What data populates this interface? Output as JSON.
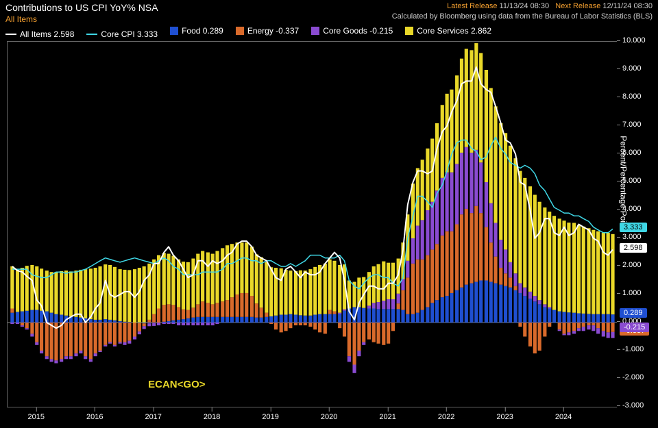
{
  "header": {
    "title": "Contributions to US CPI YoY% NSA",
    "subtitle": "All Items",
    "latest_label": "Latest Release",
    "latest_value": "11/13/24 08:30",
    "next_label": "Next Release",
    "next_value": "12/11/24 08:30",
    "source": "Calculated by Bloomberg using data from the Bureau of Labor Statistics (BLS)"
  },
  "legend": {
    "items": [
      {
        "key": "all",
        "label": "All Items 2.598",
        "type": "line",
        "color": "#ffffff"
      },
      {
        "key": "core",
        "label": "Core CPI 3.333",
        "type": "line",
        "color": "#3fd7e6"
      },
      {
        "key": "food",
        "label": "Food 0.289",
        "type": "bar",
        "color": "#1f4fd1"
      },
      {
        "key": "energy",
        "label": "Energy -0.337",
        "type": "bar",
        "color": "#d96a2b"
      },
      {
        "key": "goods",
        "label": "Core Goods -0.215",
        "type": "bar",
        "color": "#8a4bd1"
      },
      {
        "key": "svcs",
        "label": "Core Services 2.862",
        "type": "bar",
        "color": "#e9d829"
      }
    ]
  },
  "chart": {
    "type": "stacked-bar-with-lines",
    "background_color": "#000000",
    "grid_color": "#444444",
    "axis_color": "#888888",
    "text_color": "#ffffff",
    "y": {
      "min": -3.0,
      "max": 10.0,
      "step": 1.0,
      "label": "Percent/Percentage Point",
      "decimals": 3
    },
    "x": {
      "start_year": 2014.5,
      "end_year": 2024.9,
      "tick_years": [
        2015,
        2016,
        2017,
        2018,
        2019,
        2020,
        2021,
        2022,
        2023,
        2024
      ]
    },
    "colors": {
      "food": "#1f4fd1",
      "energy": "#d96a2b",
      "goods": "#8a4bd1",
      "svcs": "#e9d829",
      "all": "#ffffff",
      "core": "#3fd7e6"
    },
    "line_width": {
      "all": 2,
      "core": 1.5
    },
    "end_labels": [
      {
        "text": "3.333",
        "color": "#3fd7e6",
        "bg": "#3fd7e6",
        "fg": "#000",
        "y": 3.333
      },
      {
        "text": "2.598",
        "color": "#ffffff",
        "bg": "#ffffff",
        "fg": "#000",
        "y": 2.598
      },
      {
        "text": "0.289",
        "color": "#1f4fd1",
        "bg": "#1f4fd1",
        "fg": "#fff",
        "y": 0.289
      },
      {
        "text": "-0.337",
        "color": "#d96a2b",
        "bg": "#d96a2b",
        "fg": "#fff",
        "y": -0.337
      },
      {
        "text": "-0.215",
        "color": "#8a4bd1",
        "bg": "#8a4bd1",
        "fg": "#fff",
        "y": -0.215
      }
    ],
    "annotation": {
      "text": "ECAN<GO>",
      "x_year": 2016.9,
      "y_value": -2.0
    },
    "series": {
      "t": [
        2014.58,
        2014.67,
        2014.75,
        2014.83,
        2014.92,
        2015.0,
        2015.08,
        2015.17,
        2015.25,
        2015.33,
        2015.42,
        2015.5,
        2015.58,
        2015.67,
        2015.75,
        2015.83,
        2015.92,
        2016.0,
        2016.08,
        2016.17,
        2016.25,
        2016.33,
        2016.42,
        2016.5,
        2016.58,
        2016.67,
        2016.75,
        2016.83,
        2016.92,
        2017.0,
        2017.08,
        2017.17,
        2017.25,
        2017.33,
        2017.42,
        2017.5,
        2017.58,
        2017.67,
        2017.75,
        2017.83,
        2017.92,
        2018.0,
        2018.08,
        2018.17,
        2018.25,
        2018.33,
        2018.42,
        2018.5,
        2018.58,
        2018.67,
        2018.75,
        2018.83,
        2018.92,
        2019.0,
        2019.08,
        2019.17,
        2019.25,
        2019.33,
        2019.42,
        2019.5,
        2019.58,
        2019.67,
        2019.75,
        2019.83,
        2019.92,
        2020.0,
        2020.08,
        2020.17,
        2020.25,
        2020.33,
        2020.42,
        2020.5,
        2020.58,
        2020.67,
        2020.75,
        2020.83,
        2020.92,
        2021.0,
        2021.08,
        2021.17,
        2021.25,
        2021.33,
        2021.42,
        2021.5,
        2021.58,
        2021.67,
        2021.75,
        2021.83,
        2021.92,
        2022.0,
        2022.08,
        2022.17,
        2022.25,
        2022.33,
        2022.42,
        2022.5,
        2022.58,
        2022.67,
        2022.75,
        2022.83,
        2022.92,
        2023.0,
        2023.08,
        2023.17,
        2023.25,
        2023.33,
        2023.42,
        2023.5,
        2023.58,
        2023.67,
        2023.75,
        2023.83,
        2023.92,
        2024.0,
        2024.08,
        2024.17,
        2024.25,
        2024.33,
        2024.42,
        2024.5,
        2024.58,
        2024.67,
        2024.75,
        2024.83
      ],
      "food": [
        0.35,
        0.38,
        0.4,
        0.42,
        0.45,
        0.45,
        0.42,
        0.4,
        0.35,
        0.3,
        0.28,
        0.25,
        0.22,
        0.2,
        0.18,
        0.15,
        0.12,
        0.1,
        0.1,
        0.12,
        0.1,
        0.08,
        0.05,
        0.03,
        0.02,
        0.0,
        -0.02,
        -0.03,
        -0.03,
        -0.02,
        0.0,
        0.03,
        0.05,
        0.08,
        0.1,
        0.12,
        0.15,
        0.18,
        0.2,
        0.2,
        0.2,
        0.2,
        0.2,
        0.2,
        0.2,
        0.2,
        0.2,
        0.2,
        0.2,
        0.2,
        0.18,
        0.18,
        0.2,
        0.22,
        0.25,
        0.28,
        0.28,
        0.3,
        0.28,
        0.26,
        0.25,
        0.25,
        0.28,
        0.3,
        0.3,
        0.3,
        0.3,
        0.3,
        0.42,
        0.5,
        0.55,
        0.55,
        0.52,
        0.5,
        0.5,
        0.48,
        0.48,
        0.48,
        0.48,
        0.48,
        0.45,
        0.3,
        0.3,
        0.35,
        0.45,
        0.55,
        0.7,
        0.8,
        0.9,
        0.95,
        1.05,
        1.15,
        1.25,
        1.35,
        1.4,
        1.45,
        1.5,
        1.5,
        1.45,
        1.4,
        1.35,
        1.3,
        1.25,
        1.15,
        1.05,
        0.95,
        0.85,
        0.75,
        0.65,
        0.55,
        0.5,
        0.45,
        0.4,
        0.38,
        0.36,
        0.35,
        0.33,
        0.32,
        0.31,
        0.3,
        0.3,
        0.3,
        0.3,
        0.289
      ],
      "energy": [
        0.15,
        0.0,
        -0.1,
        -0.2,
        -0.4,
        -0.7,
        -1.0,
        -1.2,
        -1.3,
        -1.35,
        -1.3,
        -1.2,
        -1.2,
        -1.1,
        -1.0,
        -1.2,
        -1.3,
        -1.1,
        -1.0,
        -0.8,
        -0.7,
        -0.8,
        -0.7,
        -0.7,
        -0.65,
        -0.5,
        -0.3,
        -0.1,
        0.1,
        0.3,
        0.5,
        0.6,
        0.6,
        0.55,
        0.45,
        0.35,
        0.3,
        0.35,
        0.45,
        0.55,
        0.5,
        0.45,
        0.5,
        0.55,
        0.6,
        0.7,
        0.8,
        0.85,
        0.85,
        0.75,
        0.5,
        0.35,
        0.15,
        -0.05,
        -0.25,
        -0.35,
        -0.3,
        -0.2,
        -0.1,
        -0.1,
        -0.1,
        -0.15,
        -0.25,
        -0.35,
        -0.4,
        0.15,
        0.1,
        -0.2,
        -0.5,
        -1.2,
        -1.5,
        -1.0,
        -0.7,
        -0.6,
        -0.7,
        -0.75,
        -0.8,
        -0.75,
        -0.3,
        0.2,
        0.7,
        1.3,
        1.8,
        1.9,
        1.8,
        1.85,
        1.9,
        2.0,
        2.2,
        2.3,
        2.2,
        2.35,
        2.6,
        2.7,
        2.5,
        2.7,
        2.4,
        1.9,
        1.4,
        0.95,
        0.6,
        0.45,
        0.35,
        0.15,
        -0.15,
        -0.5,
        -0.85,
        -1.1,
        -1.0,
        -0.5,
        -0.15,
        0.0,
        -0.25,
        -0.4,
        -0.35,
        -0.3,
        -0.2,
        -0.15,
        -0.1,
        -0.1,
        -0.2,
        -0.3,
        -0.35,
        -0.337
      ],
      "goods": [
        -0.05,
        -0.05,
        -0.05,
        -0.05,
        -0.1,
        -0.1,
        -0.1,
        -0.1,
        -0.1,
        -0.1,
        -0.1,
        -0.1,
        -0.1,
        -0.1,
        -0.1,
        -0.1,
        -0.1,
        -0.1,
        -0.05,
        -0.05,
        -0.05,
        -0.05,
        -0.05,
        -0.1,
        -0.1,
        -0.1,
        -0.1,
        -0.1,
        -0.1,
        -0.1,
        -0.1,
        -0.05,
        -0.05,
        -0.05,
        -0.1,
        -0.1,
        -0.1,
        -0.1,
        -0.1,
        -0.1,
        -0.1,
        -0.1,
        -0.05,
        0.0,
        0.0,
        0.0,
        0.0,
        0.0,
        0.0,
        0.0,
        0.0,
        0.0,
        0.0,
        0.0,
        0.0,
        0.0,
        0.0,
        0.0,
        0.0,
        0.0,
        0.0,
        0.0,
        0.0,
        0.0,
        0.0,
        0.0,
        0.0,
        0.05,
        0.05,
        -0.2,
        -0.3,
        -0.2,
        -0.1,
        0.1,
        0.2,
        0.25,
        0.3,
        0.35,
        0.35,
        0.35,
        0.4,
        0.6,
        0.9,
        1.2,
        1.4,
        1.6,
        1.7,
        1.9,
        2.05,
        2.1,
        2.1,
        2.15,
        2.2,
        2.2,
        2.15,
        2.0,
        1.8,
        1.6,
        1.4,
        1.2,
        1.0,
        0.85,
        0.55,
        0.45,
        0.35,
        0.3,
        0.25,
        0.2,
        0.15,
        0.1,
        0.05,
        0.0,
        -0.05,
        -0.05,
        -0.1,
        -0.1,
        -0.1,
        -0.15,
        -0.15,
        -0.2,
        -0.2,
        -0.2,
        -0.2,
        -0.215
      ],
      "svcs": [
        1.5,
        1.5,
        1.55,
        1.6,
        1.6,
        1.55,
        1.5,
        1.45,
        1.45,
        1.5,
        1.55,
        1.6,
        1.6,
        1.65,
        1.7,
        1.75,
        1.8,
        1.85,
        1.9,
        1.95,
        1.95,
        1.9,
        1.85,
        1.85,
        1.85,
        1.9,
        1.95,
        2.0,
        2.0,
        1.95,
        1.9,
        1.85,
        1.8,
        1.75,
        1.7,
        1.7,
        1.7,
        1.75,
        1.8,
        1.8,
        1.8,
        1.8,
        1.85,
        1.9,
        1.95,
        1.9,
        1.85,
        1.8,
        1.8,
        1.75,
        1.75,
        1.8,
        1.8,
        1.75,
        1.7,
        1.65,
        1.6,
        1.55,
        1.55,
        1.6,
        1.6,
        1.65,
        1.7,
        1.75,
        1.8,
        1.8,
        1.8,
        1.7,
        1.6,
        1.0,
        0.9,
        1.05,
        1.1,
        1.2,
        1.3,
        1.35,
        1.4,
        1.3,
        1.3,
        1.25,
        1.3,
        1.65,
        1.95,
        2.05,
        2.15,
        2.2,
        2.25,
        2.4,
        2.6,
        2.8,
        2.95,
        3.15,
        3.35,
        3.5,
        3.65,
        3.8,
        3.9,
        4.0,
        4.1,
        4.15,
        4.15,
        4.15,
        4.15,
        4.1,
        4.0,
        3.9,
        3.75,
        3.6,
        3.5,
        3.45,
        3.4,
        3.35,
        3.3,
        3.25,
        3.2,
        3.2,
        3.15,
        3.1,
        3.05,
        3.0,
        2.95,
        2.9,
        2.9,
        2.862
      ],
      "all": [
        2.0,
        1.85,
        1.8,
        1.65,
        1.5,
        0.8,
        0.6,
        0.0,
        -0.1,
        -0.2,
        -0.1,
        0.1,
        0.2,
        0.3,
        0.3,
        0.0,
        0.2,
        0.5,
        0.7,
        1.5,
        1.0,
        0.9,
        1.0,
        1.1,
        1.1,
        0.9,
        1.1,
        1.5,
        1.7,
        2.1,
        2.1,
        2.5,
        2.7,
        2.4,
        2.2,
        1.9,
        1.6,
        1.7,
        2.2,
        2.2,
        2.0,
        2.2,
        2.1,
        2.2,
        2.4,
        2.5,
        2.8,
        2.9,
        2.9,
        2.7,
        2.4,
        2.3,
        2.2,
        1.9,
        1.6,
        1.5,
        1.9,
        2.0,
        1.8,
        1.6,
        1.8,
        1.7,
        1.7,
        1.8,
        2.1,
        2.3,
        2.5,
        2.3,
        1.5,
        0.4,
        0.1,
        0.7,
        1.0,
        1.3,
        1.3,
        1.2,
        1.2,
        1.4,
        1.4,
        1.7,
        2.6,
        4.2,
        5.0,
        5.4,
        5.4,
        5.3,
        5.4,
        6.2,
        6.8,
        7.0,
        7.5,
        7.9,
        8.5,
        8.6,
        8.6,
        9.1,
        8.5,
        8.3,
        8.2,
        7.7,
        7.1,
        6.5,
        6.4,
        6.0,
        5.0,
        4.9,
        4.0,
        3.0,
        3.2,
        3.7,
        3.7,
        3.2,
        3.1,
        3.4,
        3.1,
        3.2,
        3.5,
        3.4,
        3.3,
        3.0,
        2.9,
        2.5,
        2.4,
        2.598
      ],
      "core": [
        1.9,
        1.9,
        1.9,
        1.9,
        1.7,
        1.65,
        1.6,
        1.6,
        1.7,
        1.8,
        1.8,
        1.75,
        1.8,
        1.8,
        1.85,
        1.9,
        2.0,
        2.1,
        2.2,
        2.3,
        2.25,
        2.2,
        2.15,
        2.2,
        2.25,
        2.3,
        2.25,
        2.2,
        2.15,
        2.1,
        2.2,
        2.3,
        2.2,
        2.0,
        1.9,
        1.7,
        1.7,
        1.7,
        1.7,
        1.8,
        1.8,
        1.8,
        1.8,
        1.9,
        2.1,
        2.1,
        2.2,
        2.3,
        2.3,
        2.2,
        2.2,
        2.1,
        2.2,
        2.2,
        2.1,
        2.0,
        2.0,
        2.1,
        2.0,
        2.1,
        2.2,
        2.4,
        2.4,
        2.4,
        2.3,
        2.3,
        2.3,
        2.4,
        2.2,
        1.5,
        1.3,
        1.2,
        1.4,
        1.6,
        1.7,
        1.7,
        1.6,
        1.6,
        1.4,
        1.3,
        1.6,
        3.0,
        3.8,
        4.5,
        4.5,
        4.3,
        4.1,
        4.6,
        4.9,
        5.4,
        6.0,
        6.4,
        6.5,
        6.5,
        6.2,
        6.1,
        5.8,
        5.9,
        6.3,
        6.6,
        6.2,
        6.0,
        5.7,
        5.6,
        5.5,
        5.6,
        5.5,
        5.3,
        4.9,
        4.7,
        4.4,
        4.1,
        4.0,
        3.9,
        3.9,
        3.8,
        3.8,
        3.7,
        3.6,
        3.4,
        3.3,
        3.2,
        3.2,
        3.333
      ]
    }
  }
}
